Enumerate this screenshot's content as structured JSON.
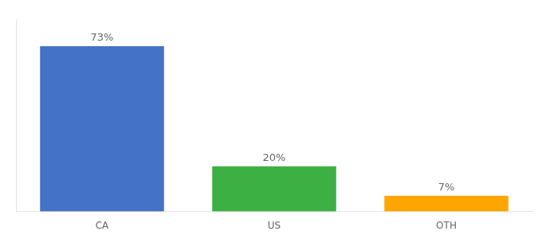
{
  "chart_data": {
    "type": "bar",
    "categories": [
      "CA",
      "US",
      "OTH"
    ],
    "values": [
      73,
      20,
      7
    ],
    "value_labels": [
      "73%",
      "20%",
      "7%"
    ],
    "colors": [
      "#4472C4",
      "#3CB043",
      "#FFA500"
    ],
    "ylim": [
      0,
      85
    ],
    "grid": false,
    "data_labels": true,
    "tick_labels": "x"
  }
}
